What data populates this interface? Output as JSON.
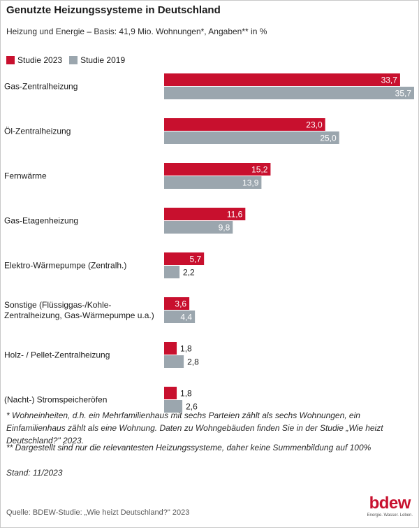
{
  "title": "Genutzte Heizungssysteme in Deutschland",
  "subtitle": "Heizung und Energie – Basis: 41,9 Mio. Wohnungen*, Angaben** in %",
  "legend": {
    "series_2023": "Studie 2023",
    "series_2019": "Studie 2019"
  },
  "colors": {
    "series_2023": "#c8102e",
    "series_2019": "#9ba6ae"
  },
  "chart_data": {
    "type": "bar",
    "orientation": "horizontal",
    "categories": [
      [
        "Gas-Zentralheizung"
      ],
      [
        "Öl-Zentralheizung"
      ],
      [
        "Fernwärme"
      ],
      [
        "Gas-Etagenheizung"
      ],
      [
        "Elektro-Wärmepumpe (Zentralh.)"
      ],
      [
        "Sonstige (Flüssiggas-/Kohle-",
        "Zentralheizung, Gas-Wärmepumpe u.a.)"
      ],
      [
        "Holz- / Pellet-Zentralheizung"
      ],
      [
        "(Nacht-) Stromspeicheröfen"
      ]
    ],
    "series": [
      {
        "name": "Studie 2023",
        "values": [
          33.7,
          23.0,
          15.2,
          11.6,
          5.7,
          3.6,
          1.8,
          1.8
        ],
        "labels": [
          "33,7",
          "23,0",
          "15,2",
          "11,6",
          "5,7",
          "3,6",
          "1,8",
          "1,8"
        ]
      },
      {
        "name": "Studie 2019",
        "values": [
          35.7,
          25.0,
          13.9,
          9.8,
          2.2,
          4.4,
          2.8,
          2.6
        ],
        "labels": [
          "35,7",
          "25,0",
          "13,9",
          "9,8",
          "2,2",
          "4,4",
          "2,8",
          "2,6"
        ]
      }
    ],
    "xlim": [
      0,
      35.7
    ],
    "grid": false
  },
  "notes": {
    "note1": "* Wohneinheiten, d.h. ein Mehrfamilienhaus mit sechs Parteien zählt als sechs Wohnungen, ein Einfamilienhaus zählt als eine Wohnung. Daten zu Wohngebäuden finden Sie in der Studie „Wie heizt Deutschland?\" 2023.",
    "note2": "** Dargestellt sind nur die relevantesten Heizungssysteme, daher keine Summenbildung auf 100%",
    "stand": "Stand: 11/2023"
  },
  "source": "Quelle: BDEW-Studie: „Wie heizt Deutschland?\" 2023",
  "logo": {
    "word": "bdew",
    "tagline": "Energie. Wasser. Leben."
  }
}
